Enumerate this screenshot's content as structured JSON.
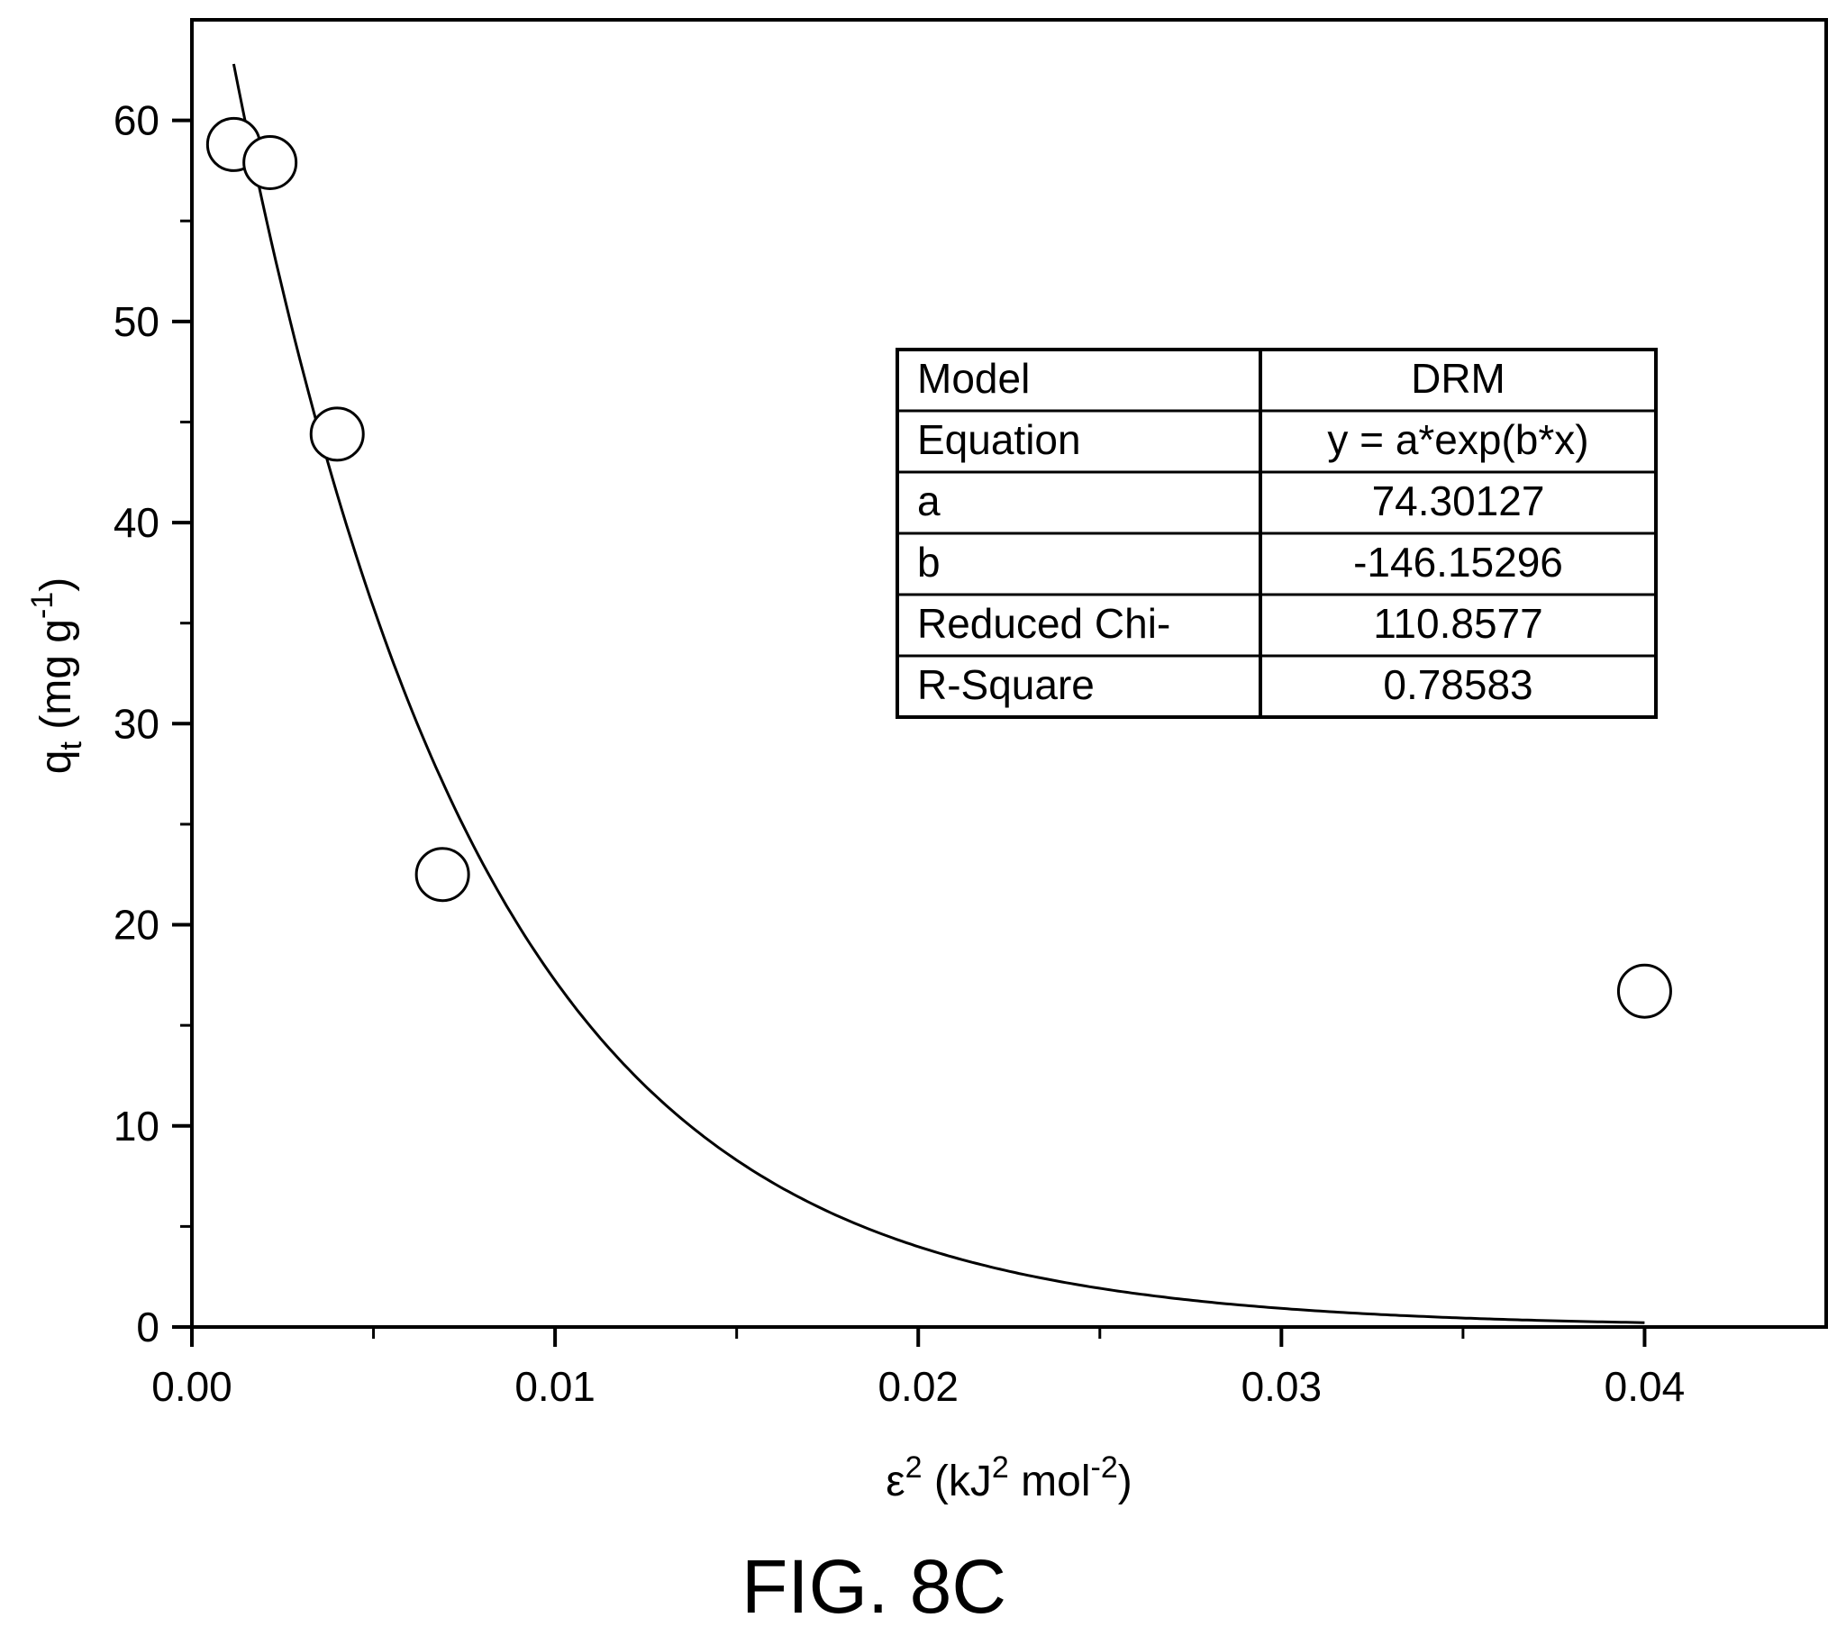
{
  "figure": {
    "caption": "FIG. 8C"
  },
  "chart_data": {
    "type": "scatter",
    "title": "",
    "xlabel": {
      "main": "ε",
      "sup1": "2",
      "rest1": " (kJ",
      "sup2": "2",
      "rest2": " mol",
      "sup3": "-2",
      "rest3": ")"
    },
    "ylabel": {
      "main": "q",
      "sub": "t",
      "rest1": " (mg g",
      "sup": "-1",
      "rest2": ")"
    },
    "xlim": [
      0,
      0.045
    ],
    "ylim": [
      0,
      65
    ],
    "x_ticks": [
      {
        "value": 0,
        "label": "0.00"
      },
      {
        "value": 0.01,
        "label": "0.01"
      },
      {
        "value": 0.02,
        "label": "0.02"
      },
      {
        "value": 0.03,
        "label": "0.03"
      },
      {
        "value": 0.04,
        "label": "0.04"
      }
    ],
    "x_minor_ticks": [
      0.005,
      0.015,
      0.025,
      0.035
    ],
    "y_ticks": [
      {
        "value": 0,
        "label": "0"
      },
      {
        "value": 10,
        "label": "10"
      },
      {
        "value": 20,
        "label": "20"
      },
      {
        "value": 30,
        "label": "30"
      },
      {
        "value": 40,
        "label": "40"
      },
      {
        "value": 50,
        "label": "50"
      },
      {
        "value": 60,
        "label": "60"
      }
    ],
    "y_minor_ticks": [
      5,
      15,
      25,
      35,
      45,
      55
    ],
    "grid": false,
    "series": [
      {
        "kind": "points",
        "marker": "open-circle",
        "x": [
          0.00115,
          0.00215,
          0.004,
          0.0069,
          0.04
        ],
        "y": [
          58.8,
          57.9,
          44.4,
          22.5,
          16.7
        ]
      },
      {
        "kind": "fit-curve",
        "equation": "y = a*exp(b*x)",
        "a": 74.30127,
        "b": -146.15296,
        "x_range": [
          0.00115,
          0.04
        ]
      }
    ],
    "table": {
      "placement": "upper-right",
      "rows": [
        [
          "Model",
          "DRM"
        ],
        [
          "Equation",
          "y = a*exp(b*x)"
        ],
        [
          "a",
          "74.30127"
        ],
        [
          "b",
          "-146.15296"
        ],
        [
          "Reduced Chi-",
          "110.8577"
        ],
        [
          "R-Square",
          "0.78583"
        ]
      ]
    }
  }
}
